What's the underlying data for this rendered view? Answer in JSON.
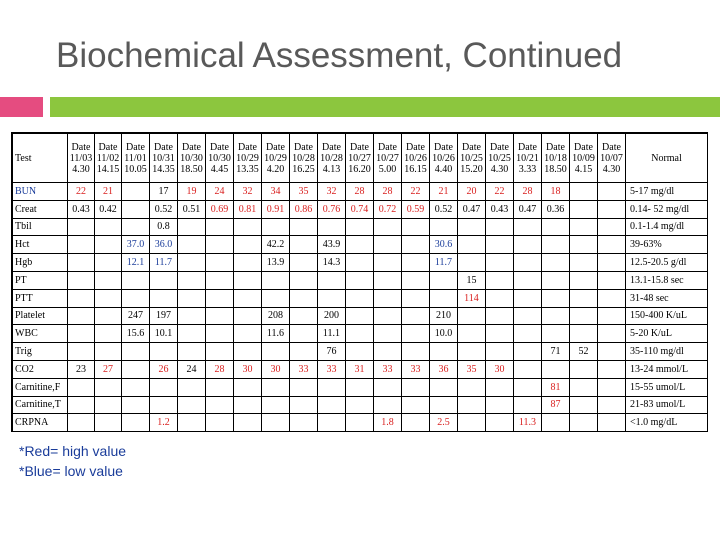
{
  "slide": {
    "title": "Biochemical Assessment, Continued",
    "accent_colors": {
      "pink": "#e54c80",
      "green": "#8cc63e",
      "high": "#d9201f",
      "low": "#1a3c9a"
    }
  },
  "table": {
    "test_header": "Test",
    "normal_header": "Normal",
    "date_label": "Date",
    "dates": [
      "11/03",
      "11/02",
      "11/01",
      "10/31",
      "10/30",
      "10/30",
      "10/29",
      "10/29",
      "10/28",
      "10/28",
      "10/27",
      "10/27",
      "10/26",
      "10/26",
      "10/25",
      "10/25",
      "10/21",
      "10/18",
      "10/09",
      "10/07"
    ],
    "times": [
      "4.30",
      "14.15",
      "10.05",
      "14.35",
      "18.50",
      "4.45",
      "13.35",
      "4.20",
      "16.25",
      "4.13",
      "16.20",
      "5.00",
      "16.15",
      "4.40",
      "15.20",
      "4.30",
      "3.33",
      "18.50",
      "4.15",
      "4.30"
    ],
    "rows": [
      {
        "test": "BUN",
        "test_color": "blue",
        "normal": "5-17 mg/dl",
        "cells": [
          {
            "v": "22",
            "c": "red"
          },
          {
            "v": "21",
            "c": "red"
          },
          {
            "v": ""
          },
          {
            "v": "17"
          },
          {
            "v": "19",
            "c": "red"
          },
          {
            "v": "24",
            "c": "red"
          },
          {
            "v": "32",
            "c": "red"
          },
          {
            "v": "34",
            "c": "red"
          },
          {
            "v": "35",
            "c": "red"
          },
          {
            "v": "32",
            "c": "red"
          },
          {
            "v": "28",
            "c": "red"
          },
          {
            "v": "28",
            "c": "red"
          },
          {
            "v": "22",
            "c": "red"
          },
          {
            "v": "21",
            "c": "red"
          },
          {
            "v": "20",
            "c": "red"
          },
          {
            "v": "22",
            "c": "red"
          },
          {
            "v": "28",
            "c": "red"
          },
          {
            "v": "18",
            "c": "red"
          },
          {
            "v": ""
          },
          {
            "v": ""
          }
        ]
      },
      {
        "test": "Creat",
        "normal": "0.14- 52 mg/dl",
        "cells": [
          {
            "v": "0.43"
          },
          {
            "v": "0.42"
          },
          {
            "v": ""
          },
          {
            "v": "0.52"
          },
          {
            "v": "0.51"
          },
          {
            "v": "0.69",
            "c": "red"
          },
          {
            "v": "0.81",
            "c": "red"
          },
          {
            "v": "0.91",
            "c": "red"
          },
          {
            "v": "0.86",
            "c": "red"
          },
          {
            "v": "0.76",
            "c": "red"
          },
          {
            "v": "0.74",
            "c": "red"
          },
          {
            "v": "0.72",
            "c": "red"
          },
          {
            "v": "0.59",
            "c": "red"
          },
          {
            "v": "0.52"
          },
          {
            "v": "0.47"
          },
          {
            "v": "0.43"
          },
          {
            "v": "0.47"
          },
          {
            "v": "0.36"
          },
          {
            "v": ""
          },
          {
            "v": ""
          }
        ]
      },
      {
        "test": "Tbil",
        "normal": "0.1-1.4 mg/dl",
        "cells": [
          {
            "v": ""
          },
          {
            "v": ""
          },
          {
            "v": ""
          },
          {
            "v": "0.8"
          },
          {
            "v": ""
          },
          {
            "v": ""
          },
          {
            "v": ""
          },
          {
            "v": ""
          },
          {
            "v": ""
          },
          {
            "v": ""
          },
          {
            "v": ""
          },
          {
            "v": ""
          },
          {
            "v": ""
          },
          {
            "v": ""
          },
          {
            "v": ""
          },
          {
            "v": ""
          },
          {
            "v": ""
          },
          {
            "v": ""
          },
          {
            "v": ""
          },
          {
            "v": ""
          }
        ]
      },
      {
        "test": "Hct",
        "normal": "39-63%",
        "cells": [
          {
            "v": ""
          },
          {
            "v": ""
          },
          {
            "v": "37.0",
            "c": "blue"
          },
          {
            "v": "36.0",
            "c": "blue"
          },
          {
            "v": ""
          },
          {
            "v": ""
          },
          {
            "v": ""
          },
          {
            "v": "42.2"
          },
          {
            "v": ""
          },
          {
            "v": "43.9"
          },
          {
            "v": ""
          },
          {
            "v": ""
          },
          {
            "v": ""
          },
          {
            "v": "30.6",
            "c": "blue"
          },
          {
            "v": ""
          },
          {
            "v": ""
          },
          {
            "v": ""
          },
          {
            "v": ""
          },
          {
            "v": ""
          },
          {
            "v": ""
          }
        ]
      },
      {
        "test": "Hgb",
        "normal": "12.5-20.5 g/dl",
        "cells": [
          {
            "v": ""
          },
          {
            "v": ""
          },
          {
            "v": "12.1",
            "c": "blue"
          },
          {
            "v": "11.7",
            "c": "blue"
          },
          {
            "v": ""
          },
          {
            "v": ""
          },
          {
            "v": ""
          },
          {
            "v": "13.9"
          },
          {
            "v": ""
          },
          {
            "v": "14.3"
          },
          {
            "v": ""
          },
          {
            "v": ""
          },
          {
            "v": ""
          },
          {
            "v": "11.7",
            "c": "blue"
          },
          {
            "v": ""
          },
          {
            "v": ""
          },
          {
            "v": ""
          },
          {
            "v": ""
          },
          {
            "v": ""
          },
          {
            "v": ""
          }
        ]
      },
      {
        "test": "PT",
        "normal": "13.1-15.8 sec",
        "cells": [
          {
            "v": ""
          },
          {
            "v": ""
          },
          {
            "v": ""
          },
          {
            "v": ""
          },
          {
            "v": ""
          },
          {
            "v": ""
          },
          {
            "v": ""
          },
          {
            "v": ""
          },
          {
            "v": ""
          },
          {
            "v": ""
          },
          {
            "v": ""
          },
          {
            "v": ""
          },
          {
            "v": ""
          },
          {
            "v": ""
          },
          {
            "v": "15"
          },
          {
            "v": ""
          },
          {
            "v": ""
          },
          {
            "v": ""
          },
          {
            "v": ""
          },
          {
            "v": ""
          }
        ]
      },
      {
        "test": "PTT",
        "normal": "31-48 sec",
        "cells": [
          {
            "v": ""
          },
          {
            "v": ""
          },
          {
            "v": ""
          },
          {
            "v": ""
          },
          {
            "v": ""
          },
          {
            "v": ""
          },
          {
            "v": ""
          },
          {
            "v": ""
          },
          {
            "v": ""
          },
          {
            "v": ""
          },
          {
            "v": ""
          },
          {
            "v": ""
          },
          {
            "v": ""
          },
          {
            "v": ""
          },
          {
            "v": "114",
            "c": "red"
          },
          {
            "v": ""
          },
          {
            "v": ""
          },
          {
            "v": ""
          },
          {
            "v": ""
          },
          {
            "v": ""
          }
        ]
      },
      {
        "test": "Platelet",
        "normal": "150-400 K/uL",
        "cells": [
          {
            "v": ""
          },
          {
            "v": ""
          },
          {
            "v": "247"
          },
          {
            "v": "197"
          },
          {
            "v": ""
          },
          {
            "v": ""
          },
          {
            "v": ""
          },
          {
            "v": "208"
          },
          {
            "v": ""
          },
          {
            "v": "200"
          },
          {
            "v": ""
          },
          {
            "v": ""
          },
          {
            "v": ""
          },
          {
            "v": "210"
          },
          {
            "v": ""
          },
          {
            "v": ""
          },
          {
            "v": ""
          },
          {
            "v": ""
          },
          {
            "v": ""
          },
          {
            "v": ""
          }
        ]
      },
      {
        "test": "WBC",
        "normal": "5-20 K/uL",
        "cells": [
          {
            "v": ""
          },
          {
            "v": ""
          },
          {
            "v": "15.6"
          },
          {
            "v": "10.1"
          },
          {
            "v": ""
          },
          {
            "v": ""
          },
          {
            "v": ""
          },
          {
            "v": "11.6"
          },
          {
            "v": ""
          },
          {
            "v": "11.1"
          },
          {
            "v": ""
          },
          {
            "v": ""
          },
          {
            "v": ""
          },
          {
            "v": "10.0"
          },
          {
            "v": ""
          },
          {
            "v": ""
          },
          {
            "v": ""
          },
          {
            "v": ""
          },
          {
            "v": ""
          },
          {
            "v": ""
          }
        ]
      },
      {
        "test": "Trig",
        "normal": "35-110 mg/dl",
        "cells": [
          {
            "v": ""
          },
          {
            "v": ""
          },
          {
            "v": ""
          },
          {
            "v": ""
          },
          {
            "v": ""
          },
          {
            "v": ""
          },
          {
            "v": ""
          },
          {
            "v": ""
          },
          {
            "v": ""
          },
          {
            "v": "76"
          },
          {
            "v": ""
          },
          {
            "v": ""
          },
          {
            "v": ""
          },
          {
            "v": ""
          },
          {
            "v": ""
          },
          {
            "v": ""
          },
          {
            "v": ""
          },
          {
            "v": "71"
          },
          {
            "v": "52"
          },
          {
            "v": ""
          }
        ]
      },
      {
        "test": "CO2",
        "normal": "13-24 mmol/L",
        "cells": [
          {
            "v": "23"
          },
          {
            "v": "27",
            "c": "red"
          },
          {
            "v": ""
          },
          {
            "v": "26",
            "c": "red"
          },
          {
            "v": "24"
          },
          {
            "v": "28",
            "c": "red"
          },
          {
            "v": "30",
            "c": "red"
          },
          {
            "v": "30",
            "c": "red"
          },
          {
            "v": "33",
            "c": "red"
          },
          {
            "v": "33",
            "c": "red"
          },
          {
            "v": "31",
            "c": "red"
          },
          {
            "v": "33",
            "c": "red"
          },
          {
            "v": "33",
            "c": "red"
          },
          {
            "v": "36",
            "c": "red"
          },
          {
            "v": "35",
            "c": "red"
          },
          {
            "v": "30",
            "c": "red"
          },
          {
            "v": ""
          },
          {
            "v": ""
          },
          {
            "v": ""
          },
          {
            "v": ""
          }
        ]
      },
      {
        "test": "Carnitine,F",
        "normal": "15-55 umol/L",
        "cells": [
          {
            "v": ""
          },
          {
            "v": ""
          },
          {
            "v": ""
          },
          {
            "v": ""
          },
          {
            "v": ""
          },
          {
            "v": ""
          },
          {
            "v": ""
          },
          {
            "v": ""
          },
          {
            "v": ""
          },
          {
            "v": ""
          },
          {
            "v": ""
          },
          {
            "v": ""
          },
          {
            "v": ""
          },
          {
            "v": ""
          },
          {
            "v": ""
          },
          {
            "v": ""
          },
          {
            "v": ""
          },
          {
            "v": "81",
            "c": "red"
          },
          {
            "v": ""
          },
          {
            "v": ""
          }
        ]
      },
      {
        "test": "Carnitine,T",
        "normal": "21-83 umol/L",
        "cells": [
          {
            "v": ""
          },
          {
            "v": ""
          },
          {
            "v": ""
          },
          {
            "v": ""
          },
          {
            "v": ""
          },
          {
            "v": ""
          },
          {
            "v": ""
          },
          {
            "v": ""
          },
          {
            "v": ""
          },
          {
            "v": ""
          },
          {
            "v": ""
          },
          {
            "v": ""
          },
          {
            "v": ""
          },
          {
            "v": ""
          },
          {
            "v": ""
          },
          {
            "v": ""
          },
          {
            "v": ""
          },
          {
            "v": "87",
            "c": "red"
          },
          {
            "v": ""
          },
          {
            "v": ""
          }
        ]
      },
      {
        "test": "CRPNA",
        "normal": "<1.0 mg/dL",
        "cells": [
          {
            "v": ""
          },
          {
            "v": ""
          },
          {
            "v": ""
          },
          {
            "v": "1.2",
            "c": "red"
          },
          {
            "v": ""
          },
          {
            "v": ""
          },
          {
            "v": ""
          },
          {
            "v": ""
          },
          {
            "v": ""
          },
          {
            "v": ""
          },
          {
            "v": ""
          },
          {
            "v": "1.8",
            "c": "red"
          },
          {
            "v": ""
          },
          {
            "v": "2.5",
            "c": "red"
          },
          {
            "v": ""
          },
          {
            "v": ""
          },
          {
            "v": "11.3",
            "c": "red"
          },
          {
            "v": ""
          },
          {
            "v": ""
          },
          {
            "v": ""
          }
        ]
      }
    ]
  },
  "legend": {
    "red": "*Red= high value",
    "blue": "*Blue= low value"
  }
}
